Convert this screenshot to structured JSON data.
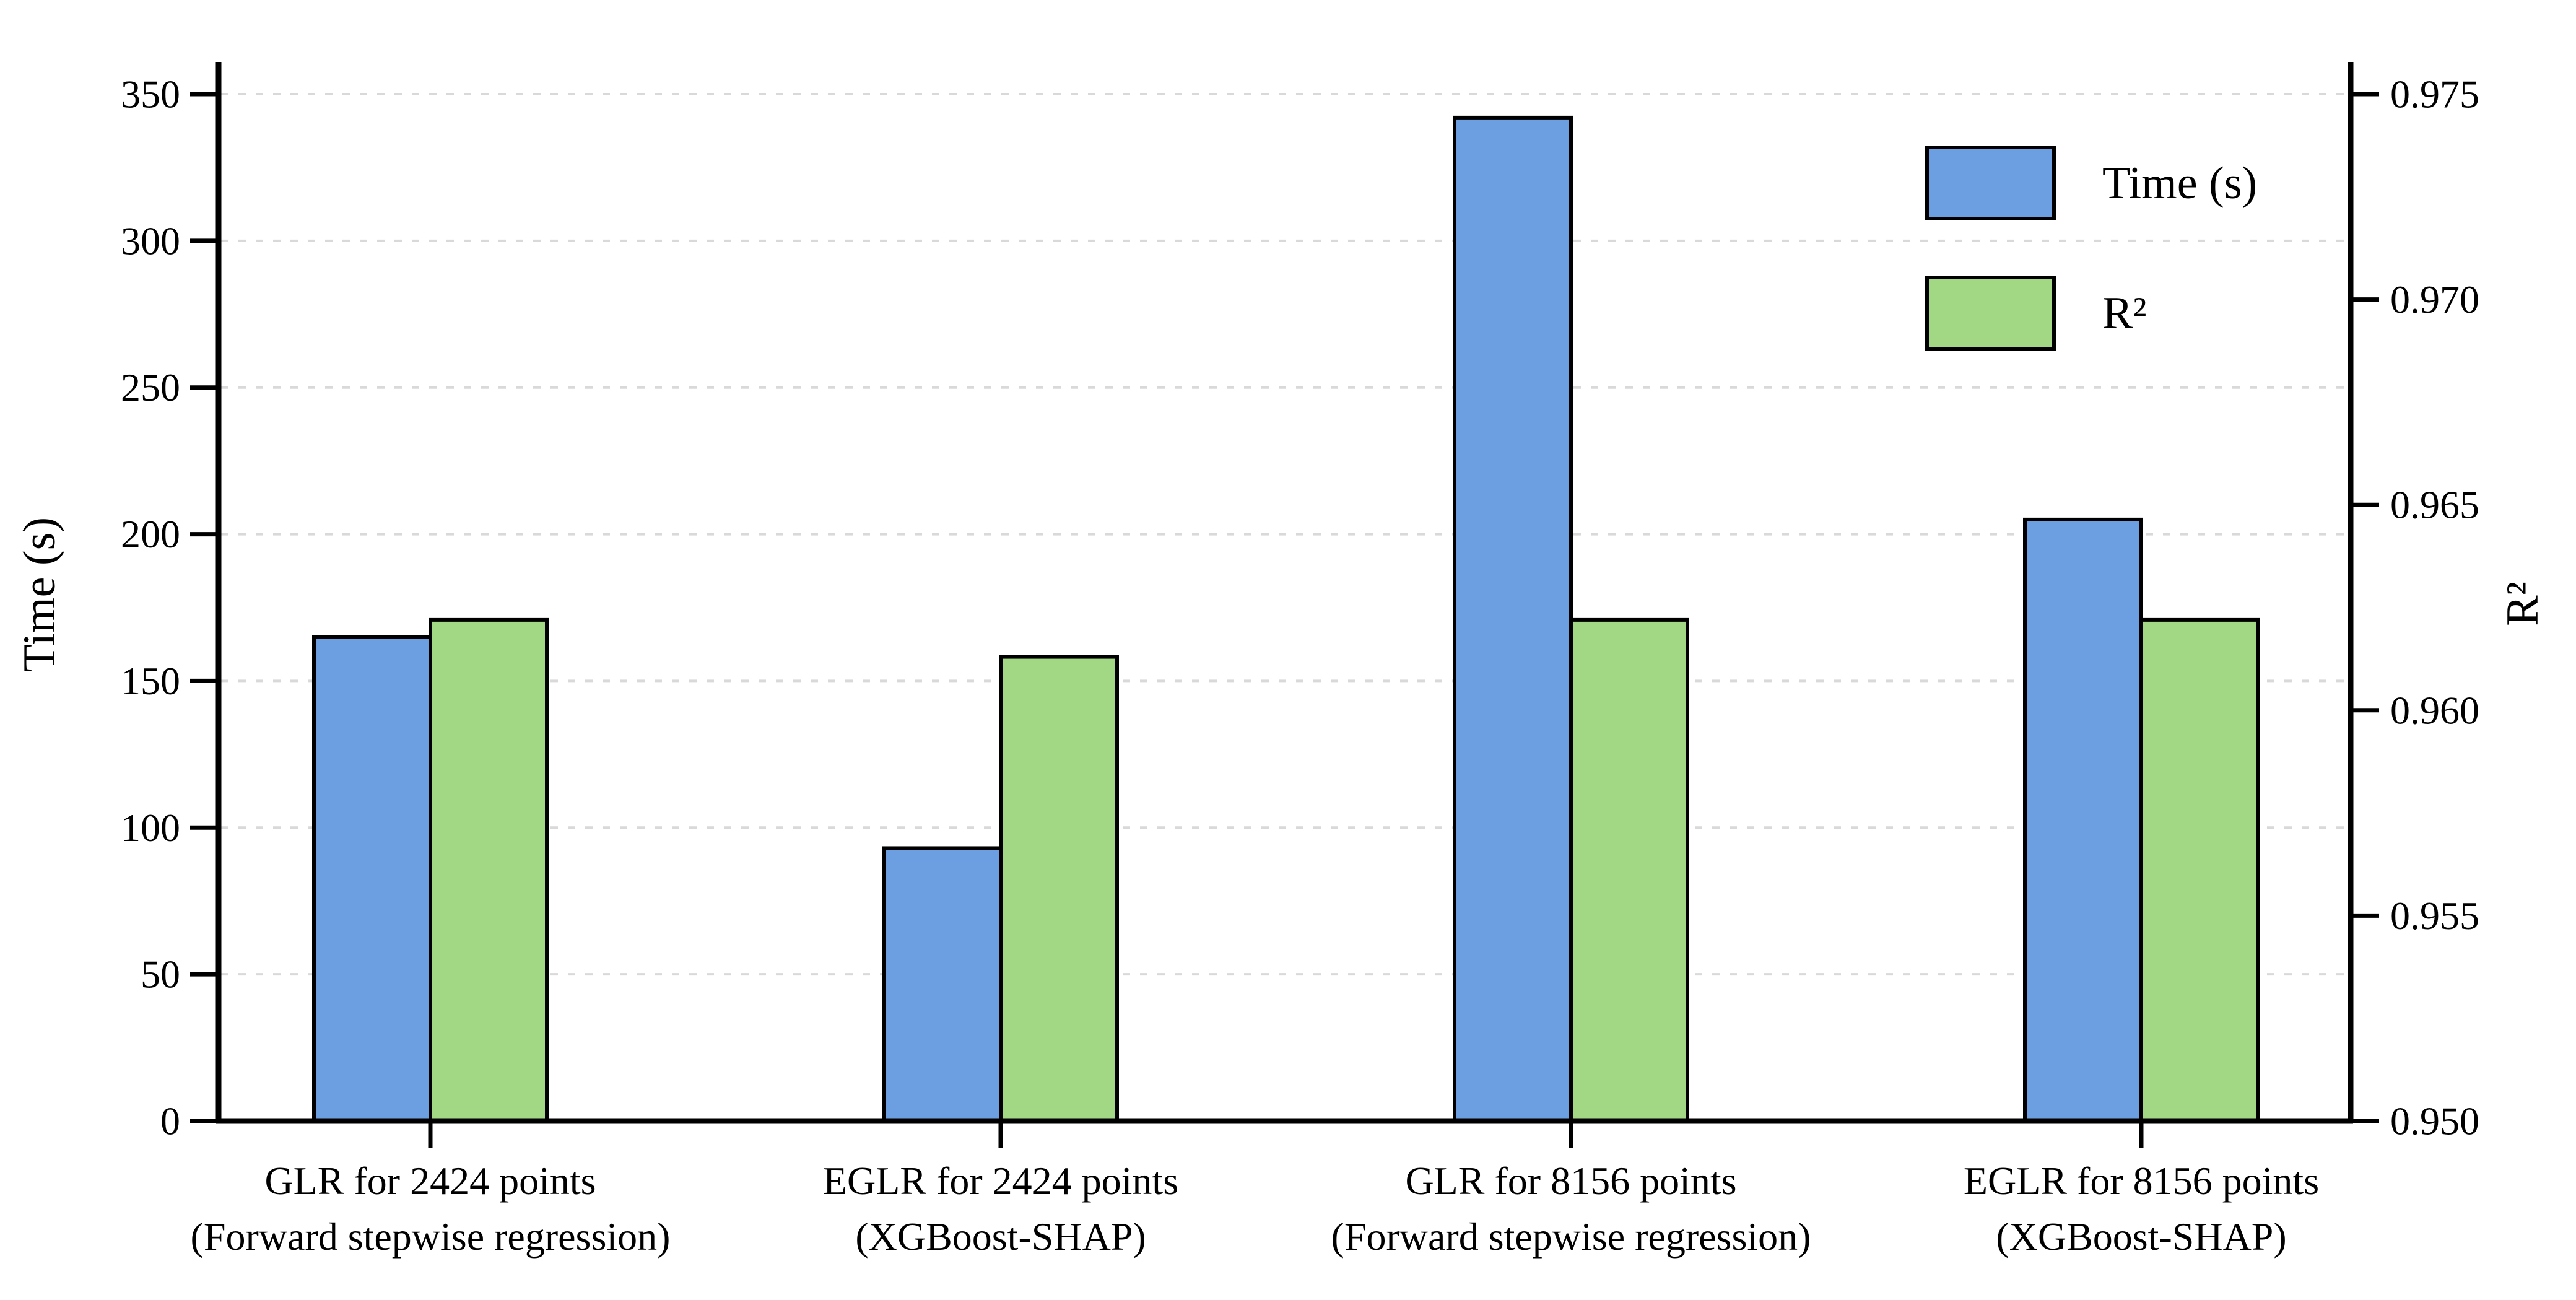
{
  "chart_data": {
    "type": "bar",
    "title": "",
    "categories": [
      {
        "line1": "GLR for 2424 points",
        "line2": "(Forward stepwise regression)"
      },
      {
        "line1": "EGLR for 2424 points",
        "line2": "(XGBoost-SHAP)"
      },
      {
        "line1": "GLR for 8156 points",
        "line2": "(Forward stepwise regression)"
      },
      {
        "line1": "EGLR for 8156 points",
        "line2": "(XGBoost-SHAP)"
      }
    ],
    "series": [
      {
        "name": "Time (s)",
        "axis": "left",
        "color": "#6B9FE2",
        "edge_color": "#000000",
        "values": [
          165,
          93,
          342,
          205
        ]
      },
      {
        "name": "R²",
        "axis": "right",
        "color": "#A2D883",
        "edge_color": "#000000",
        "values": [
          0.9622,
          0.9613,
          0.9622,
          0.9622
        ]
      }
    ],
    "left_axis": {
      "label": "Time (s)",
      "min": 0,
      "max": 350,
      "ticks": [
        0,
        50,
        100,
        150,
        200,
        250,
        300,
        350
      ]
    },
    "right_axis": {
      "label": "R²",
      "min": 0.95,
      "max": 0.975,
      "ticks": [
        "0.950",
        "0.955",
        "0.960",
        "0.965",
        "0.970",
        "0.975"
      ]
    },
    "grid": {
      "show": true,
      "style": "dashed",
      "color": "#d9d9d9",
      "source": "left-axis ticks"
    },
    "legend": {
      "position": "upper right",
      "entries": [
        "Time (s)",
        "R²"
      ]
    },
    "background": "#ffffff",
    "spine_color": "#000000"
  }
}
